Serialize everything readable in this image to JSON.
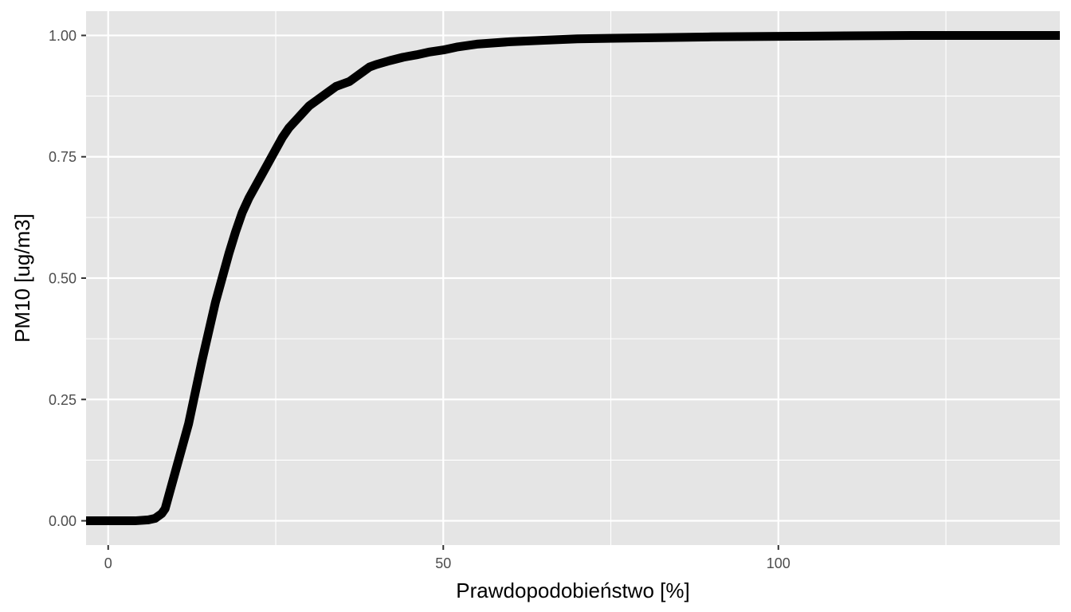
{
  "chart_data": {
    "type": "line",
    "title": "",
    "xlabel": "Prawdopodobieństwo [%]",
    "ylabel": "PM10 [ug/m3]",
    "xlim": [
      -3.3,
      142
    ],
    "ylim": [
      -0.05,
      1.05
    ],
    "x_ticks": [
      0,
      50,
      100
    ],
    "x_tick_labels": [
      "0",
      "50",
      "100"
    ],
    "x_minor_ticks": [
      25,
      75,
      125
    ],
    "y_ticks": [
      0,
      0.25,
      0.5,
      0.75,
      1.0
    ],
    "y_tick_labels": [
      "0.00",
      "0.25",
      "0.50",
      "0.75",
      "1.00"
    ],
    "y_minor_ticks": [
      0.125,
      0.375,
      0.625,
      0.875
    ],
    "grid": true,
    "panel_background": "#e5e5e5",
    "grid_color": "#ffffff",
    "line_color": "#000000",
    "series": [
      {
        "x": [
          -3.3,
          0,
          2,
          4,
          6,
          7,
          8,
          8.5,
          9,
          10,
          11,
          12,
          13,
          14,
          15,
          16,
          17,
          18,
          19,
          20,
          21,
          22,
          23,
          24,
          25,
          26,
          27,
          28,
          29,
          30,
          31,
          32,
          33,
          34,
          35,
          36,
          37,
          38,
          39,
          40,
          42,
          44,
          46,
          48,
          50,
          52,
          55,
          60,
          65,
          70,
          80,
          90,
          100,
          110,
          120,
          130,
          142
        ],
        "y": [
          0,
          0,
          0,
          0,
          0.002,
          0.005,
          0.015,
          0.025,
          0.05,
          0.1,
          0.15,
          0.2,
          0.265,
          0.33,
          0.39,
          0.45,
          0.5,
          0.55,
          0.595,
          0.635,
          0.665,
          0.69,
          0.715,
          0.74,
          0.765,
          0.79,
          0.81,
          0.825,
          0.84,
          0.855,
          0.865,
          0.875,
          0.885,
          0.895,
          0.9,
          0.905,
          0.915,
          0.925,
          0.935,
          0.94,
          0.948,
          0.955,
          0.96,
          0.966,
          0.97,
          0.976,
          0.982,
          0.987,
          0.99,
          0.993,
          0.995,
          0.997,
          0.998,
          0.999,
          1.0,
          1.0,
          1.0
        ]
      }
    ]
  }
}
